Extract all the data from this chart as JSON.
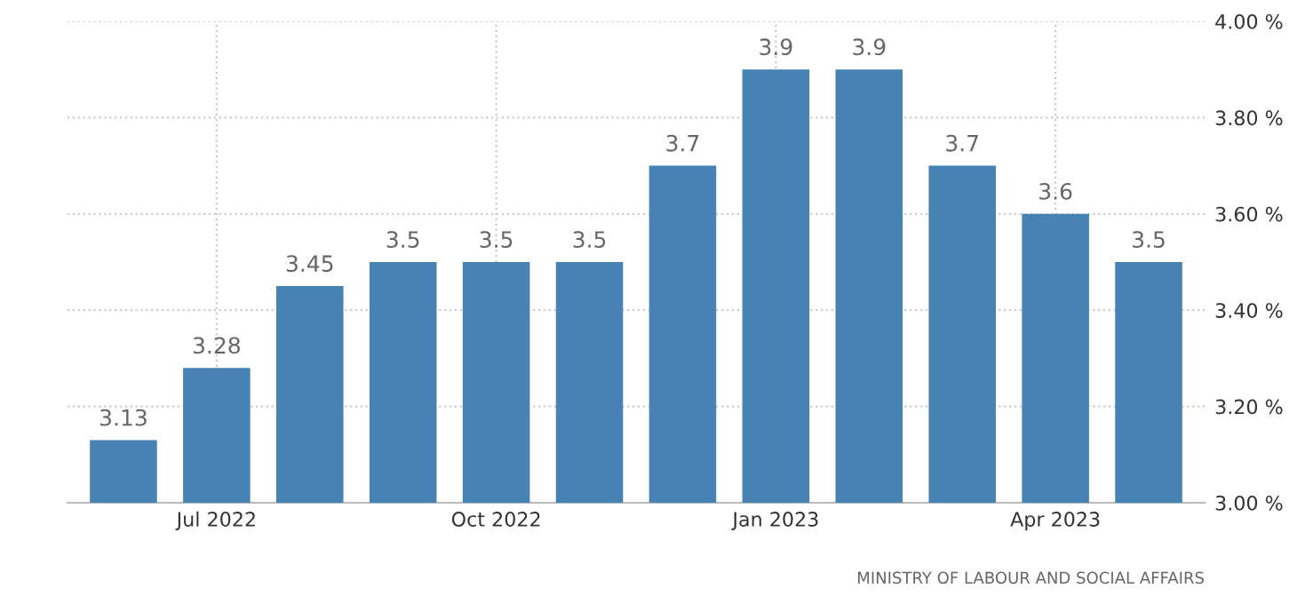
{
  "chart_data": {
    "type": "bar",
    "categories": [
      null,
      "Jul 2022",
      null,
      null,
      "Oct 2022",
      null,
      null,
      "Jan 2023",
      null,
      null,
      "Apr 2023",
      null
    ],
    "values": [
      3.13,
      3.28,
      3.45,
      3.5,
      3.5,
      3.5,
      3.7,
      3.9,
      3.9,
      3.7,
      3.6,
      3.5
    ],
    "value_labels": [
      "3.13",
      "3.28",
      "3.45",
      "3.5",
      "3.5",
      "3.5",
      "3.7",
      "3.9",
      "3.9",
      "3.7",
      "3.6",
      "3.5"
    ],
    "color": "#4682b4",
    "ylim": [
      3,
      4
    ],
    "yticks": [
      {
        "value": 3.0,
        "label": "3.00 %"
      },
      {
        "value": 3.2,
        "label": "3.20 %"
      },
      {
        "value": 3.4,
        "label": "3.40 %"
      },
      {
        "value": 3.6,
        "label": "3.60 %"
      },
      {
        "value": 3.8,
        "label": "3.80 %"
      },
      {
        "value": 4.0,
        "label": "4.00 %"
      }
    ],
    "grid": true,
    "annotations": [
      "MINISTRY OF LABOUR AND SOCIAL AFFAIRS"
    ]
  }
}
